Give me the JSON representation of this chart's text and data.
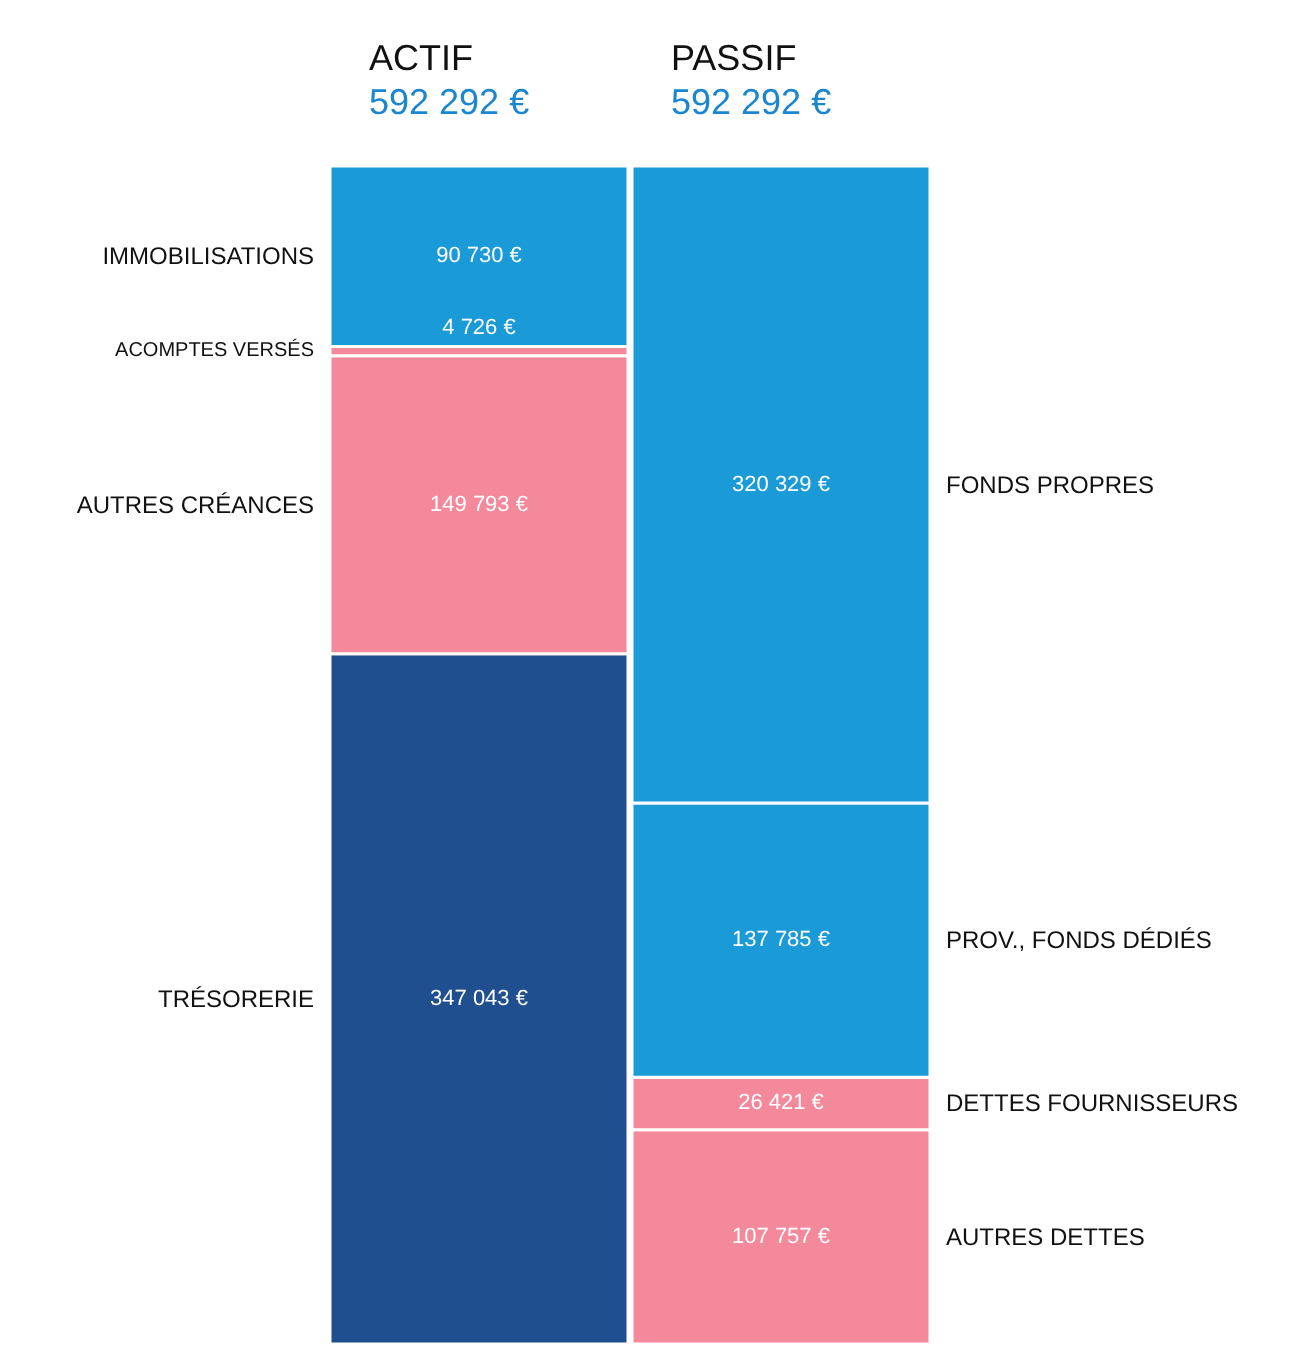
{
  "chart_data": {
    "type": "bar",
    "stacked": true,
    "categories": [
      "ACTIF",
      "PASSIF"
    ],
    "totals": [
      "592 292 €",
      "592 292 €"
    ],
    "ylim": [
      0,
      592292
    ],
    "tick_labels": "x",
    "legend": false,
    "grid": false,
    "series": [
      {
        "name": "TRÉSORERIE",
        "color": "#1f4f8e",
        "values": [
          347043,
          null
        ],
        "value_labels": [
          "347 043 €",
          null
        ]
      },
      {
        "name": "AUTRES CRÉANCES",
        "color": "#f4899b",
        "values": [
          149793,
          null
        ],
        "value_labels": [
          "149 793 €",
          null
        ]
      },
      {
        "name": "ACOMPTES VERSÉS",
        "color": "#f4899b",
        "values": [
          4726,
          null
        ],
        "value_labels": [
          "4 726 €",
          null
        ]
      },
      {
        "name": "IMMOBILISATIONS",
        "color": "#1a9ad6",
        "values": [
          90730,
          null
        ],
        "value_labels": [
          "90 730 €",
          null
        ]
      },
      {
        "name": "AUTRES DETTES",
        "color": "#f4899b",
        "values": [
          null,
          107757
        ],
        "value_labels": [
          null,
          "107 757 €"
        ]
      },
      {
        "name": "DETTES FOURNISSEURS",
        "color": "#f4899b",
        "values": [
          null,
          26421
        ],
        "value_labels": [
          null,
          "26 421 €"
        ]
      },
      {
        "name": "PROV., FONDS DÉDIÉS",
        "color": "#1a9ad6",
        "values": [
          null,
          137785
        ],
        "value_labels": [
          null,
          "137 785 €"
        ]
      },
      {
        "name": "FONDS PROPRES",
        "color": "#1a9ad6",
        "values": [
          null,
          320329
        ],
        "value_labels": [
          null,
          "320 329 €"
        ]
      }
    ]
  }
}
